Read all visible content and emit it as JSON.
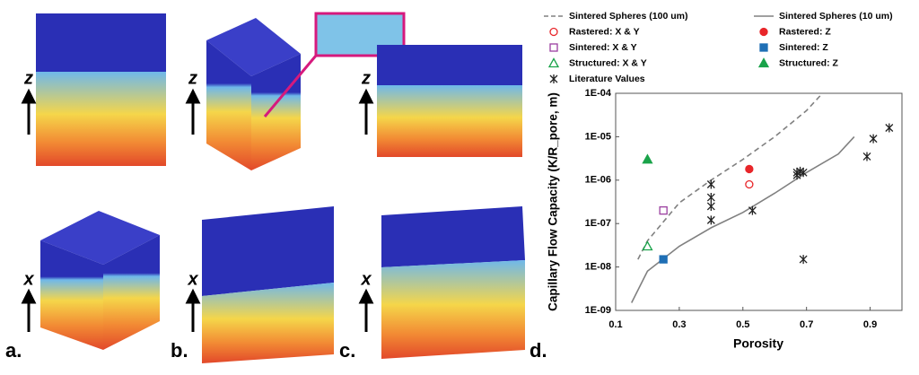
{
  "panels": [
    {
      "label": "a.",
      "directions": [
        "z",
        "x"
      ]
    },
    {
      "label": "b.",
      "directions": [
        "z",
        "x"
      ]
    },
    {
      "label": "c.",
      "directions": [
        "z",
        "x"
      ]
    },
    {
      "label": "d."
    }
  ],
  "chart_data": {
    "type": "line",
    "y_label": "Capillary Flow Capacity (K/R_pore, m)",
    "x_label": "Porosity",
    "yscale": "log",
    "ylim": [
      1e-09,
      0.0001
    ],
    "yticks": [
      {
        "value": 1e-09,
        "label": "1E-09"
      },
      {
        "value": 1e-08,
        "label": "1E-08"
      },
      {
        "value": 1e-07,
        "label": "1E-07"
      },
      {
        "value": 1e-06,
        "label": "1E-06"
      },
      {
        "value": 1e-05,
        "label": "1E-05"
      },
      {
        "value": 0.0001,
        "label": "1E-04"
      }
    ],
    "xlim": [
      0.1,
      1.0
    ],
    "xticks": [
      0.1,
      0.3,
      0.5,
      0.7,
      0.9
    ],
    "grid": false,
    "series": [
      {
        "name": "Sintered Spheres (100 um)",
        "color": "#808080",
        "mode": "line",
        "dash": true,
        "x": [
          0.17,
          0.2,
          0.3,
          0.4,
          0.5,
          0.6,
          0.7,
          0.75
        ],
        "values": [
          1.5e-08,
          4e-08,
          3e-07,
          1e-06,
          3e-06,
          1e-05,
          4e-05,
          0.0001
        ]
      },
      {
        "name": "Sintered Spheres (10 um)",
        "color": "#808080",
        "mode": "line",
        "dash": false,
        "x": [
          0.15,
          0.2,
          0.3,
          0.4,
          0.5,
          0.6,
          0.7,
          0.8,
          0.85
        ],
        "values": [
          1.5e-09,
          8e-09,
          3e-08,
          8e-08,
          1.8e-07,
          5e-07,
          1.5e-06,
          4e-06,
          1e-05
        ]
      },
      {
        "name": "Rastered: X & Y",
        "color": "#e8262a",
        "mode": "marker",
        "marker": "circle",
        "filled": false,
        "x": [
          0.52
        ],
        "values": [
          8e-07
        ]
      },
      {
        "name": "Rastered: Z",
        "color": "#e8262a",
        "mode": "marker",
        "marker": "circle",
        "filled": true,
        "x": [
          0.52
        ],
        "values": [
          1.8e-06
        ]
      },
      {
        "name": "Sintered: X & Y",
        "color": "#9b3fa0",
        "mode": "marker",
        "marker": "square",
        "filled": false,
        "x": [
          0.25
        ],
        "values": [
          2e-07
        ]
      },
      {
        "name": "Sintered: Z",
        "color": "#1f6fb5",
        "mode": "marker",
        "marker": "square",
        "filled": true,
        "x": [
          0.25
        ],
        "values": [
          1.5e-08
        ]
      },
      {
        "name": "Structured: X & Y",
        "color": "#1aa34a",
        "mode": "marker",
        "marker": "triangle",
        "filled": false,
        "x": [
          0.2
        ],
        "values": [
          3e-08
        ]
      },
      {
        "name": "Structured: Z",
        "color": "#1aa34a",
        "mode": "marker",
        "marker": "triangle",
        "filled": true,
        "x": [
          0.2
        ],
        "values": [
          3e-06
        ]
      },
      {
        "name": "Literature Values",
        "color": "#222222",
        "mode": "marker",
        "marker": "star",
        "filled": false,
        "x": [
          0.4,
          0.4,
          0.4,
          0.4,
          0.53,
          0.67,
          0.67,
          0.68,
          0.69,
          0.69,
          0.89,
          0.91,
          0.96
        ],
        "values": [
          8e-07,
          4e-07,
          2.5e-07,
          1.2e-07,
          2e-07,
          1.5e-06,
          1.3e-06,
          1.6e-06,
          1.5e-06,
          1.5e-08,
          3.5e-06,
          9e-06,
          1.6e-05
        ]
      }
    ]
  }
}
